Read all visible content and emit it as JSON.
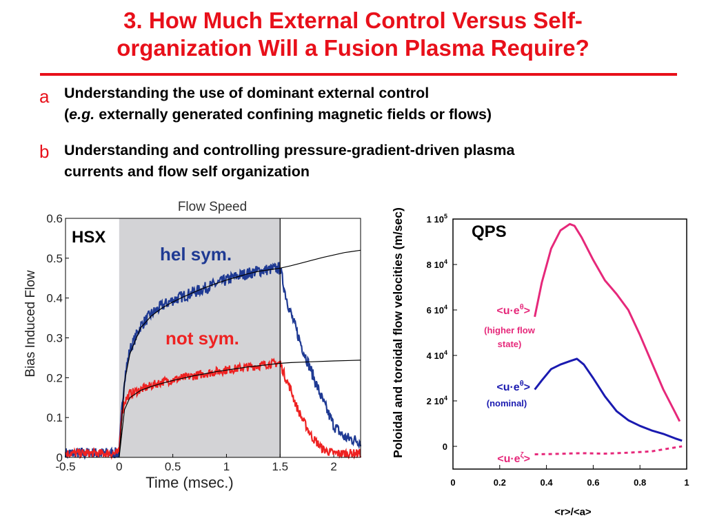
{
  "slide": {
    "title_line1": "3.  How Much External Control Versus Self-",
    "title_line2": "organization Will a Fusion Plasma Require?",
    "bullets": [
      {
        "marker": "a",
        "line1": "Understanding the use of dominant external control",
        "line2_prefix": "(",
        "line2_italic": "e.g.",
        "line2_rest": " externally generated confining magnetic fields or flows)"
      },
      {
        "marker": "b",
        "line1": "Understanding and controlling pressure-gradient-driven plasma",
        "line2": "currents and flow self organization"
      }
    ]
  },
  "colors": {
    "accent_red": "#e8101a",
    "hel_sym": "#1f3a93",
    "not_sym": "#ee2222",
    "qps_pink": "#e6287a",
    "qps_blue": "#1a1ab0",
    "shade": "#d3d3d6"
  },
  "chart_data": [
    {
      "type": "line",
      "title": "Flow Speed",
      "xlabel": "Time (msec.)",
      "ylabel": "Bias Induced Flow",
      "xlim": [
        -0.5,
        2.25
      ],
      "ylim": [
        0,
        0.6
      ],
      "xticks": [
        "-0.5",
        "0",
        "0.5",
        "1",
        "1.5",
        "2"
      ],
      "yticks": [
        "0",
        "0.1",
        "0.2",
        "0.3",
        "0.4",
        "0.5",
        "0.6"
      ],
      "shaded_interval": [
        0,
        1.5
      ],
      "device_label": "HSX",
      "annotations": [
        "hel sym.",
        "not sym."
      ],
      "series": [
        {
          "name": "hel sym.",
          "x": [
            -0.5,
            0,
            0.02,
            0.05,
            0.1,
            0.2,
            0.3,
            0.4,
            0.5,
            0.6,
            0.7,
            0.8,
            0.9,
            1.0,
            1.1,
            1.2,
            1.3,
            1.4,
            1.5,
            1.55,
            1.6,
            1.65,
            1.7,
            1.8,
            1.9,
            2.0,
            2.1,
            2.25
          ],
          "y": [
            0.01,
            0.01,
            0.1,
            0.2,
            0.27,
            0.33,
            0.36,
            0.38,
            0.395,
            0.405,
            0.415,
            0.425,
            0.435,
            0.445,
            0.455,
            0.462,
            0.468,
            0.472,
            0.475,
            0.41,
            0.36,
            0.32,
            0.28,
            0.21,
            0.14,
            0.08,
            0.05,
            0.04
          ]
        },
        {
          "name": "not sym.",
          "x": [
            -0.5,
            0,
            0.02,
            0.05,
            0.1,
            0.2,
            0.3,
            0.4,
            0.5,
            0.6,
            0.7,
            0.8,
            0.9,
            1.0,
            1.1,
            1.2,
            1.3,
            1.4,
            1.5,
            1.55,
            1.6,
            1.65,
            1.7,
            1.8,
            1.9,
            2.0,
            2.1,
            2.25
          ],
          "y": [
            0.01,
            0.01,
            0.1,
            0.14,
            0.16,
            0.17,
            0.18,
            0.19,
            0.195,
            0.2,
            0.205,
            0.21,
            0.215,
            0.22,
            0.223,
            0.227,
            0.23,
            0.235,
            0.237,
            0.2,
            0.17,
            0.13,
            0.1,
            0.05,
            0.02,
            0.01,
            0.01,
            0.01
          ]
        },
        {
          "name": "fit (hel sym.)",
          "x": [
            0,
            0.05,
            0.1,
            0.2,
            0.3,
            0.4,
            0.5,
            0.6,
            0.7,
            0.8,
            0.9,
            1.0,
            1.1,
            1.2,
            1.3,
            1.4,
            1.5,
            1.6,
            1.7,
            1.8,
            1.9,
            2.0,
            2.1,
            2.25
          ],
          "y": [
            0.0,
            0.19,
            0.26,
            0.325,
            0.355,
            0.375,
            0.39,
            0.403,
            0.415,
            0.426,
            0.436,
            0.445,
            0.453,
            0.461,
            0.467,
            0.471,
            0.475,
            0.481,
            0.488,
            0.495,
            0.502,
            0.508,
            0.514,
            0.52
          ]
        },
        {
          "name": "fit (not sym.)",
          "x": [
            0,
            0.05,
            0.1,
            0.2,
            0.3,
            0.4,
            0.5,
            0.6,
            0.7,
            0.8,
            0.9,
            1.0,
            1.1,
            1.2,
            1.3,
            1.4,
            1.5,
            1.6,
            1.8,
            2.0,
            2.25
          ],
          "y": [
            0.0,
            0.12,
            0.15,
            0.168,
            0.178,
            0.186,
            0.193,
            0.199,
            0.205,
            0.21,
            0.215,
            0.219,
            0.223,
            0.227,
            0.23,
            0.233,
            0.236,
            0.238,
            0.24,
            0.242,
            0.244
          ]
        }
      ]
    },
    {
      "type": "line",
      "device_label": "QPS",
      "xlabel": "<r>/<a>",
      "ylabel": "Poloidal and toroidal flow velocities (m/sec)",
      "xlim": [
        0,
        1
      ],
      "ylim": [
        -10000,
        100000
      ],
      "xticks": [
        "0",
        "0.2",
        "0.4",
        "0.6",
        "0.8",
        "1"
      ],
      "yticks": [
        {
          "value": 0,
          "mant": "0",
          "exp": ""
        },
        {
          "value": 20000,
          "mant": "2 10",
          "exp": "4"
        },
        {
          "value": 40000,
          "mant": "4 10",
          "exp": "4"
        },
        {
          "value": 60000,
          "mant": "6 10",
          "exp": "4"
        },
        {
          "value": 80000,
          "mant": "8 10",
          "exp": "4"
        },
        {
          "value": 100000,
          "mant": "1 10",
          "exp": "5"
        }
      ],
      "series": [
        {
          "name": "<u·e^θ> (higher flow state)",
          "label_main": "<u·e",
          "label_sup": "θ",
          "label_end": ">",
          "note_line1": "(higher flow",
          "note_line2": "state)",
          "x": [
            0.35,
            0.38,
            0.42,
            0.46,
            0.5,
            0.52,
            0.55,
            0.6,
            0.65,
            0.7,
            0.75,
            0.8,
            0.85,
            0.9,
            0.95,
            0.97
          ],
          "y": [
            57000,
            72000,
            87000,
            95000,
            97800,
            97000,
            92000,
            82000,
            73000,
            67000,
            60000,
            49000,
            37000,
            25000,
            15000,
            11000
          ]
        },
        {
          "name": "<u·e^θ> (nominal)",
          "label_main": "<u·e",
          "label_sup": "θ",
          "label_end": ">",
          "note_line1": "(nominal)",
          "x": [
            0.35,
            0.38,
            0.42,
            0.46,
            0.5,
            0.53,
            0.56,
            0.6,
            0.65,
            0.7,
            0.75,
            0.8,
            0.85,
            0.9,
            0.95,
            0.98
          ],
          "y": [
            25000,
            29000,
            34000,
            36000,
            37500,
            38500,
            36000,
            30000,
            22000,
            15500,
            11500,
            9000,
            7000,
            5500,
            3500,
            2500
          ]
        },
        {
          "name": "<u·e^ζ>",
          "label_main": "<u·e",
          "label_sup": "ζ",
          "label_end": ">",
          "x": [
            0.35,
            0.45,
            0.55,
            0.65,
            0.75,
            0.85,
            0.92,
            0.98
          ],
          "y": [
            -3500,
            -3300,
            -3000,
            -3200,
            -2800,
            -2200,
            -1000,
            0
          ]
        }
      ]
    }
  ]
}
